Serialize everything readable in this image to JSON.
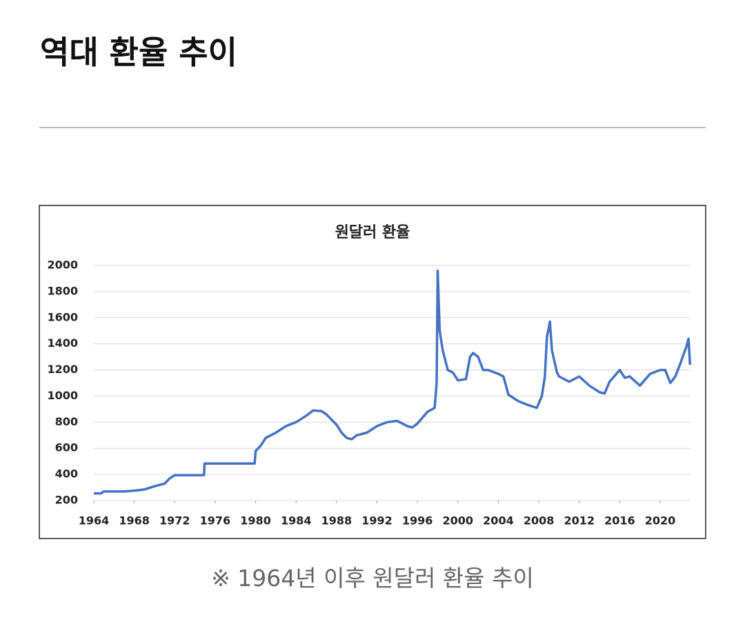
{
  "header": {
    "title": "역대 환율 추이"
  },
  "caption": "※ 1964년 이후 원달러 환율 추이",
  "chart_data": {
    "type": "line",
    "title": "원달러 환율",
    "x": [
      1964,
      1964.7,
      1965,
      1967,
      1968,
      1969,
      1970,
      1971,
      1971.5,
      1972,
      1974.9,
      1974.95,
      1979.9,
      1980,
      1980.5,
      1981,
      1982,
      1983,
      1984,
      1985,
      1985.7,
      1986.5,
      1987,
      1988,
      1988.5,
      1989,
      1989.5,
      1990,
      1991,
      1992,
      1993,
      1994,
      1995,
      1995.5,
      1996,
      1997,
      1997.7,
      1997.9,
      1998,
      1998.2,
      1998.5,
      1999,
      1999.5,
      2000,
      2000.8,
      2001.2,
      2001.5,
      2002,
      2002.5,
      2003,
      2004,
      2004.5,
      2005,
      2006,
      2007,
      2007.8,
      2008.3,
      2008.6,
      2008.8,
      2009.1,
      2009.3,
      2009.8,
      2010,
      2011,
      2012,
      2013,
      2014,
      2014.5,
      2015,
      2016,
      2016.5,
      2017,
      2018,
      2019,
      2020,
      2020.5,
      2021,
      2021.5,
      2022,
      2022.6,
      2022.8,
      2022.95
    ],
    "series": [
      {
        "name": "원달러 환율",
        "color": "#4472c4",
        "values": [
          255,
          255,
          270,
          270,
          276,
          285,
          310,
          330,
          370,
          395,
          395,
          484,
          484,
          580,
          620,
          680,
          720,
          770,
          800,
          850,
          890,
          885,
          860,
          780,
          720,
          680,
          670,
          700,
          720,
          770,
          800,
          810,
          770,
          760,
          790,
          880,
          910,
          1100,
          1960,
          1500,
          1350,
          1200,
          1180,
          1120,
          1130,
          1300,
          1330,
          1300,
          1200,
          1200,
          1170,
          1150,
          1010,
          960,
          930,
          910,
          1000,
          1150,
          1450,
          1570,
          1350,
          1180,
          1150,
          1110,
          1150,
          1080,
          1030,
          1020,
          1110,
          1200,
          1140,
          1150,
          1080,
          1170,
          1200,
          1200,
          1100,
          1150,
          1250,
          1380,
          1440,
          1240
        ]
      }
    ],
    "xlim": [
      1964,
      2023
    ],
    "xticks": [
      1964,
      1968,
      1972,
      1976,
      1980,
      1984,
      1988,
      1992,
      1996,
      2000,
      2004,
      2008,
      2012,
      2016,
      2020
    ],
    "ylim": [
      200,
      2000
    ],
    "yticks": [
      200,
      400,
      600,
      800,
      1000,
      1200,
      1400,
      1600,
      1800,
      2000
    ],
    "grid": true
  }
}
